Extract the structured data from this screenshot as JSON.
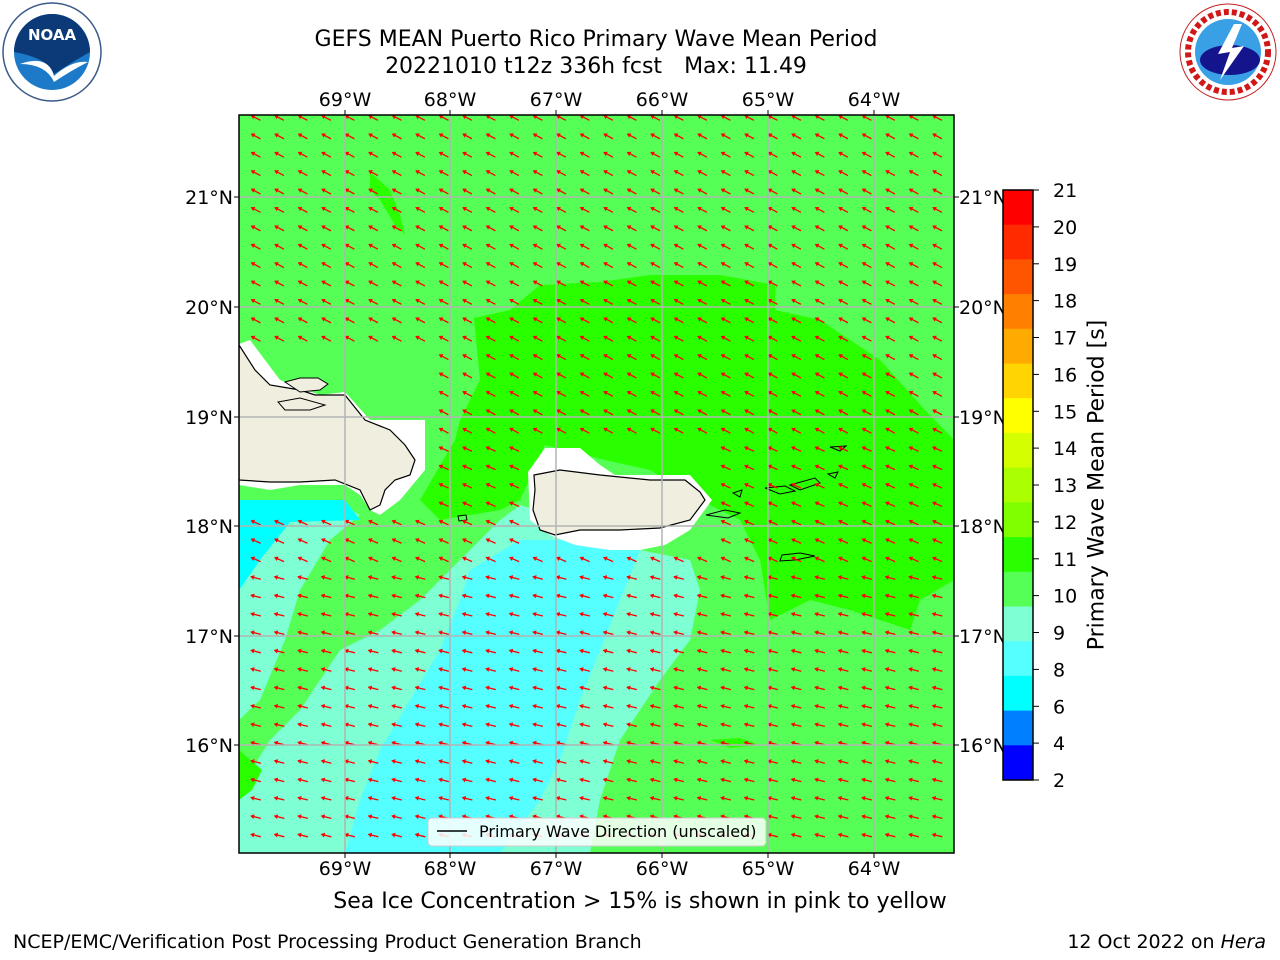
{
  "title": {
    "line1": "GEFS MEAN Puerto Rico Primary Wave Mean Period",
    "run": "20221010 t12z 336h fcst",
    "max_label": "Max: 11.49"
  },
  "logos": {
    "left": "noaa-logo",
    "right": "national-weather-service-logo",
    "left_text": "NOAA",
    "left_ring_text": "NATIONAL OCEANIC AND ATMOSPHERIC ADMINISTRATION · U.S. DEPARTMENT OF COMMERCE",
    "right_ring_text": "NATIONAL WEATHER SERVICE"
  },
  "map": {
    "lon_labels": [
      "69°W",
      "68°W",
      "67°W",
      "66°W",
      "65°W",
      "64°W"
    ],
    "lat_labels": [
      "21°N",
      "20°N",
      "19°N",
      "18°N",
      "17°N",
      "16°N"
    ],
    "legend": "Primary Wave Direction (unscaled)",
    "arrow_color": "#ff0000",
    "land_color": "#efeedf"
  },
  "colorbar": {
    "title": "Primary Wave Mean Period [s]",
    "ticks": [
      "21",
      "20",
      "19",
      "18",
      "17",
      "16",
      "15",
      "14",
      "13",
      "12",
      "11",
      "10",
      "9",
      "8",
      "6",
      "4",
      "2"
    ],
    "colors": [
      "#ff0000",
      "#ff2a00",
      "#ff5500",
      "#ff7f00",
      "#ffaa00",
      "#ffd400",
      "#ffff00",
      "#d4ff00",
      "#aaff00",
      "#7fff00",
      "#2aff00",
      "#55ff55",
      "#7fffd4",
      "#55ffff",
      "#00ffff",
      "#0080ff",
      "#0000ff"
    ]
  },
  "caption": "Sea Ice Concentration > 15% is shown in pink to yellow",
  "footer": {
    "left": "NCEP/EMC/Verification Post Processing Product Generation Branch",
    "date": "12 Oct 2022 on ",
    "host": "Hera"
  }
}
